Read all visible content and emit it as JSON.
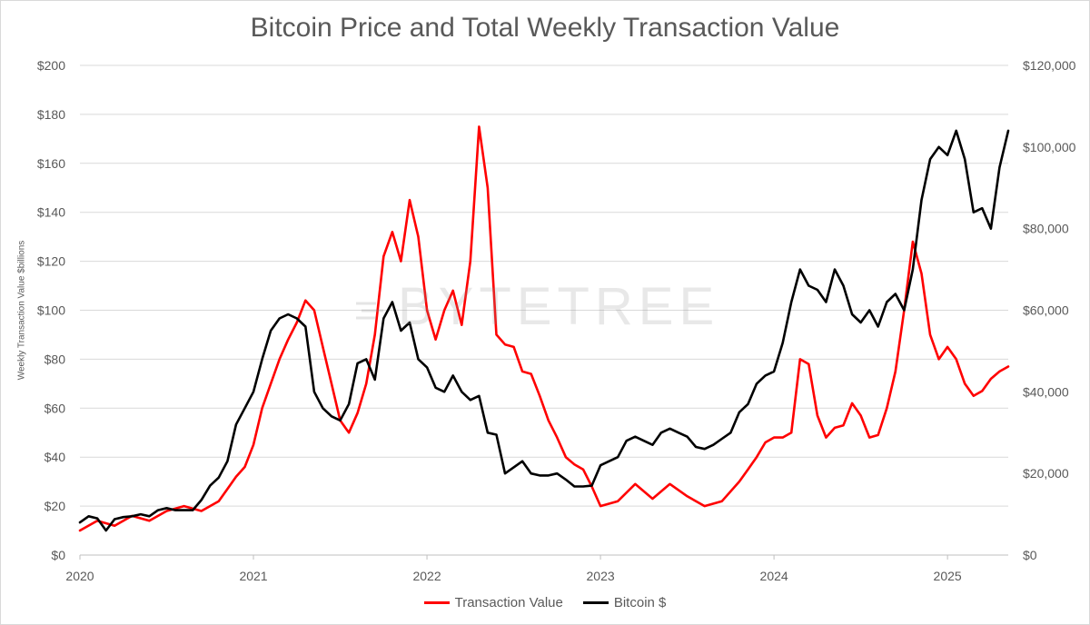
{
  "chart_data": {
    "type": "line",
    "title": "Bitcoin Price and Total Weekly Transaction Value",
    "ylabel": "Weekly Transaction Value $billions",
    "ylabel_right": "",
    "xlabel": "",
    "x_ticks": [
      "2020",
      "2021",
      "2022",
      "2023",
      "2024",
      "2025"
    ],
    "x_range": [
      2020.0,
      2025.35
    ],
    "y_ticks": [
      "$0",
      "$20",
      "$40",
      "$60",
      "$80",
      "$100",
      "$120",
      "$140",
      "$160",
      "$180",
      "$200"
    ],
    "ylim": [
      0,
      200
    ],
    "y2_ticks": [
      "$0",
      "$20,000",
      "$40,000",
      "$60,000",
      "$80,000",
      "$100,000",
      "$120,000"
    ],
    "y2lim": [
      0,
      120000
    ],
    "watermark": "BYTETREE",
    "series": [
      {
        "name": "Transaction Value",
        "color": "#ff0000",
        "axis": "left",
        "x": [
          2020.0,
          2020.1,
          2020.2,
          2020.3,
          2020.4,
          2020.5,
          2020.6,
          2020.7,
          2020.8,
          2020.9,
          2020.95,
          2021.0,
          2021.05,
          2021.1,
          2021.15,
          2021.2,
          2021.25,
          2021.3,
          2021.35,
          2021.4,
          2021.45,
          2021.5,
          2021.55,
          2021.6,
          2021.65,
          2021.7,
          2021.75,
          2021.8,
          2021.85,
          2021.9,
          2021.95,
          2022.0,
          2022.05,
          2022.1,
          2022.15,
          2022.2,
          2022.25,
          2022.3,
          2022.35,
          2022.4,
          2022.45,
          2022.5,
          2022.55,
          2022.6,
          2022.65,
          2022.7,
          2022.75,
          2022.8,
          2022.85,
          2022.9,
          2022.95,
          2023.0,
          2023.1,
          2023.2,
          2023.3,
          2023.4,
          2023.5,
          2023.6,
          2023.7,
          2023.8,
          2023.85,
          2023.9,
          2023.95,
          2024.0,
          2024.05,
          2024.1,
          2024.15,
          2024.2,
          2024.25,
          2024.3,
          2024.35,
          2024.4,
          2024.45,
          2024.5,
          2024.55,
          2024.6,
          2024.65,
          2024.7,
          2024.75,
          2024.8,
          2024.85,
          2024.9,
          2024.95,
          2025.0,
          2025.05,
          2025.1,
          2025.15,
          2025.2,
          2025.25,
          2025.3,
          2025.35
        ],
        "values": [
          10,
          14,
          12,
          16,
          14,
          18,
          20,
          18,
          22,
          32,
          36,
          45,
          60,
          70,
          80,
          88,
          95,
          104,
          100,
          85,
          70,
          55,
          50,
          58,
          70,
          90,
          122,
          132,
          120,
          145,
          130,
          100,
          88,
          100,
          108,
          94,
          120,
          175,
          150,
          90,
          86,
          85,
          75,
          74,
          65,
          55,
          48,
          40,
          37,
          35,
          28,
          20,
          22,
          29,
          23,
          29,
          24,
          20,
          22,
          30,
          35,
          40,
          46,
          48,
          48,
          50,
          80,
          78,
          57,
          48,
          52,
          53,
          62,
          57,
          48,
          49,
          60,
          75,
          100,
          128,
          115,
          90,
          80,
          85,
          80,
          70,
          65,
          67,
          72,
          75,
          77
        ]
      },
      {
        "name": "Bitcoin $",
        "color": "#000000",
        "axis": "right",
        "x": [
          2020.0,
          2020.05,
          2020.1,
          2020.15,
          2020.2,
          2020.25,
          2020.3,
          2020.35,
          2020.4,
          2020.45,
          2020.5,
          2020.55,
          2020.6,
          2020.65,
          2020.7,
          2020.75,
          2020.8,
          2020.85,
          2020.9,
          2020.95,
          2021.0,
          2021.05,
          2021.1,
          2021.15,
          2021.2,
          2021.25,
          2021.3,
          2021.35,
          2021.4,
          2021.45,
          2021.5,
          2021.55,
          2021.6,
          2021.65,
          2021.7,
          2021.75,
          2021.8,
          2021.85,
          2021.9,
          2021.95,
          2022.0,
          2022.05,
          2022.1,
          2022.15,
          2022.2,
          2022.25,
          2022.3,
          2022.35,
          2022.4,
          2022.45,
          2022.5,
          2022.55,
          2022.6,
          2022.65,
          2022.7,
          2022.75,
          2022.8,
          2022.85,
          2022.9,
          2022.95,
          2023.0,
          2023.05,
          2023.1,
          2023.15,
          2023.2,
          2023.25,
          2023.3,
          2023.35,
          2023.4,
          2023.45,
          2023.5,
          2023.55,
          2023.6,
          2023.65,
          2023.7,
          2023.75,
          2023.8,
          2023.85,
          2023.9,
          2023.95,
          2024.0,
          2024.05,
          2024.1,
          2024.15,
          2024.2,
          2024.25,
          2024.3,
          2024.35,
          2024.4,
          2024.45,
          2024.5,
          2024.55,
          2024.6,
          2024.65,
          2024.7,
          2024.75,
          2024.8,
          2024.85,
          2024.9,
          2024.95,
          2025.0,
          2025.05,
          2025.1,
          2025.15,
          2025.2,
          2025.25,
          2025.3,
          2025.35
        ],
        "values": [
          8000,
          9500,
          9000,
          6000,
          8800,
          9300,
          9500,
          10000,
          9500,
          11000,
          11500,
          11000,
          11000,
          11000,
          13500,
          17000,
          19000,
          23000,
          32000,
          36000,
          40000,
          48000,
          55000,
          58000,
          59000,
          58000,
          56000,
          40000,
          36000,
          34000,
          33000,
          37000,
          47000,
          48000,
          43000,
          58000,
          62000,
          55000,
          57000,
          48000,
          46000,
          41000,
          40000,
          44000,
          40000,
          38000,
          39000,
          30000,
          29500,
          20000,
          21500,
          23000,
          20000,
          19500,
          19500,
          20000,
          18500,
          16800,
          16800,
          17000,
          22000,
          23000,
          24000,
          28000,
          29000,
          28000,
          27000,
          30000,
          31000,
          30000,
          29000,
          26500,
          26000,
          27000,
          28500,
          30000,
          35000,
          37000,
          42000,
          44000,
          45000,
          52000,
          62000,
          70000,
          66000,
          65000,
          62000,
          70000,
          66000,
          59000,
          57000,
          60000,
          56000,
          62000,
          64000,
          60000,
          70000,
          87000,
          97000,
          100000,
          98000,
          104000,
          97000,
          84000,
          85000,
          80000,
          95000,
          104000
        ]
      }
    ]
  }
}
